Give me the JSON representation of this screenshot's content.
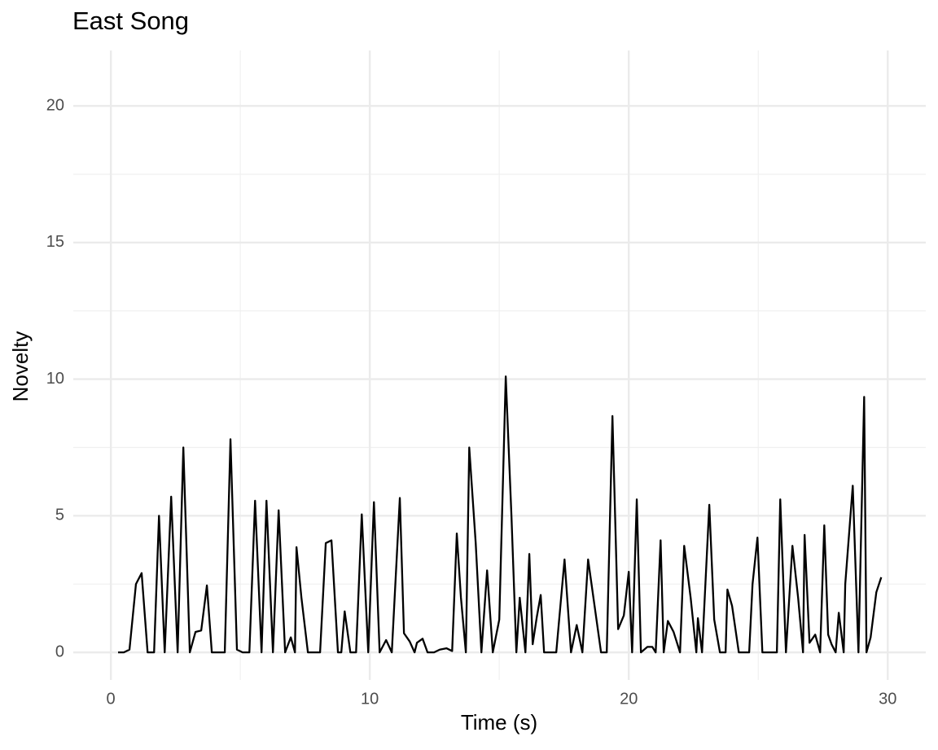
{
  "chart_data": {
    "type": "line",
    "title": "East Song",
    "x_label": "Time (s)",
    "y_label": "Novelty",
    "x": [
      0.28,
      0.5,
      0.72,
      0.97,
      1.19,
      1.42,
      1.67,
      1.86,
      2.08,
      2.33,
      2.58,
      2.8,
      3.05,
      3.27,
      3.49,
      3.71,
      3.9,
      4.15,
      4.4,
      4.62,
      4.87,
      5.09,
      5.35,
      5.57,
      5.82,
      6.01,
      6.26,
      6.48,
      6.73,
      6.95,
      7.11,
      7.17,
      7.36,
      7.61,
      7.86,
      8.08,
      8.3,
      8.52,
      8.77,
      8.9,
      9.03,
      9.25,
      9.47,
      9.69,
      9.94,
      10.16,
      10.38,
      10.63,
      10.85,
      11.16,
      11.32,
      11.54,
      11.73,
      11.82,
      12.04,
      12.23,
      12.48,
      12.7,
      12.96,
      13.18,
      13.36,
      13.52,
      13.71,
      13.84,
      14.09,
      14.31,
      14.53,
      14.75,
      15.0,
      15.25,
      15.47,
      15.66,
      15.79,
      16.01,
      16.16,
      16.29,
      16.45,
      16.6,
      16.73,
      16.98,
      17.2,
      17.52,
      17.77,
      17.99,
      18.21,
      18.43,
      18.68,
      18.93,
      19.15,
      19.37,
      19.59,
      19.81,
      20.0,
      20.13,
      20.31,
      20.47,
      20.72,
      20.91,
      21.04,
      21.23,
      21.35,
      21.51,
      21.73,
      21.98,
      22.14,
      22.39,
      22.61,
      22.67,
      22.83,
      23.11,
      23.3,
      23.52,
      23.74,
      23.81,
      23.99,
      24.25,
      24.47,
      24.65,
      24.78,
      24.97,
      25.16,
      25.38,
      25.6,
      25.72,
      25.85,
      26.07,
      26.32,
      26.54,
      26.73,
      26.79,
      26.98,
      27.2,
      27.39,
      27.55,
      27.7,
      27.83,
      27.99,
      28.11,
      28.3,
      28.36,
      28.65,
      28.87,
      29.09,
      29.18,
      29.34,
      29.56,
      29.75
    ],
    "values": [
      0,
      0,
      0.1,
      2.5,
      2.9,
      0,
      0,
      5.0,
      0,
      5.7,
      0,
      7.5,
      0,
      0.75,
      0.8,
      2.45,
      0,
      0,
      0,
      7.8,
      0.1,
      0,
      0,
      5.55,
      0,
      5.55,
      0,
      5.2,
      0,
      0.55,
      0,
      3.85,
      2.0,
      0,
      0,
      0,
      4.0,
      4.1,
      0,
      0,
      1.5,
      0,
      0,
      5.05,
      0,
      5.5,
      0,
      0.45,
      0,
      5.65,
      0.7,
      0.4,
      0,
      0.35,
      0.5,
      0,
      0,
      0.1,
      0.15,
      0.05,
      4.35,
      2.0,
      0,
      7.5,
      4.0,
      0,
      3.0,
      0,
      1.2,
      10.1,
      5.0,
      0,
      2.0,
      0,
      3.6,
      0.3,
      1.3,
      2.1,
      0,
      0,
      0,
      3.4,
      0,
      1.0,
      0,
      3.4,
      1.7,
      0,
      0,
      8.65,
      0.85,
      1.35,
      2.95,
      0,
      5.6,
      0,
      0.2,
      0.2,
      0,
      4.1,
      0,
      1.15,
      0.75,
      0,
      3.9,
      2.0,
      0,
      1.25,
      0,
      5.4,
      1.2,
      0,
      0,
      2.3,
      1.7,
      0,
      0,
      0,
      2.5,
      4.2,
      0,
      0,
      0,
      0,
      5.6,
      0,
      3.9,
      2.0,
      0,
      4.3,
      0.35,
      0.65,
      0,
      4.65,
      0.65,
      0.3,
      0,
      1.45,
      0,
      2.5,
      6.1,
      0,
      9.35,
      0,
      0.55,
      2.2,
      2.75
    ],
    "color": "#000000",
    "xlim": [
      -1.45,
      31.47
    ],
    "ylim": [
      -1.01,
      22.03
    ],
    "xticks": [
      0,
      10,
      20,
      30
    ],
    "yticks": [
      0,
      5,
      10,
      15,
      20
    ],
    "grid": true
  }
}
